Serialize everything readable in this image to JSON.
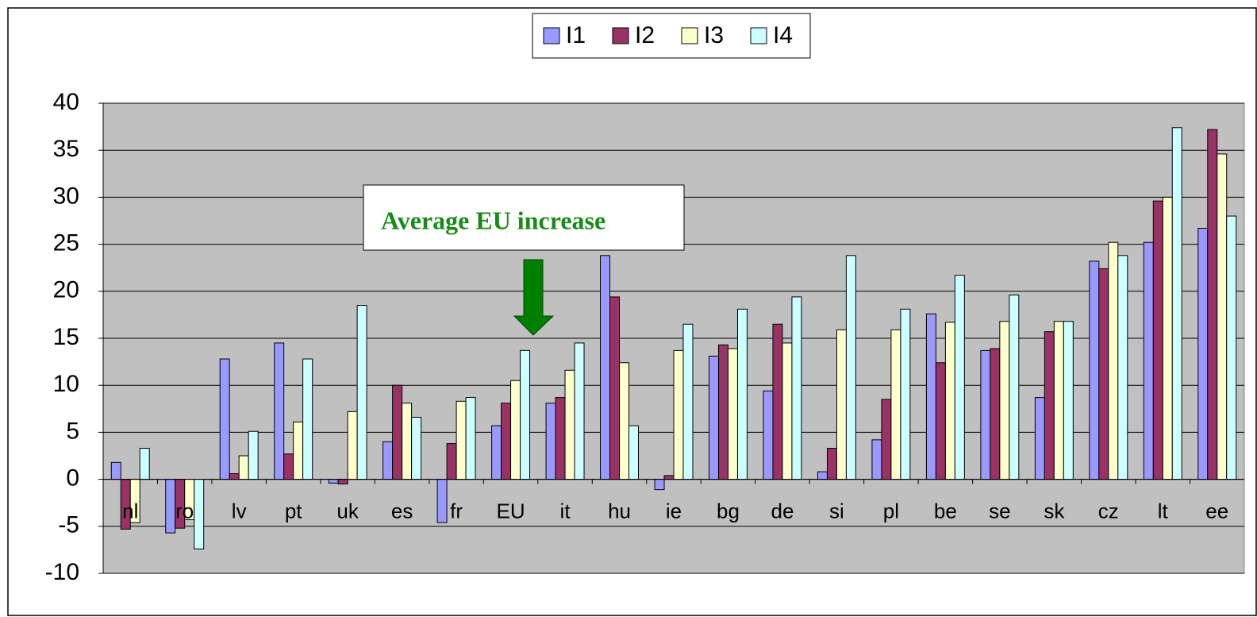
{
  "chart_data": {
    "type": "bar",
    "categories": [
      "nl",
      "ro",
      "lv",
      "pt",
      "uk",
      "es",
      "fr",
      "EU",
      "it",
      "hu",
      "ie",
      "bg",
      "de",
      "si",
      "pl",
      "be",
      "se",
      "sk",
      "cz",
      "lt",
      "ee"
    ],
    "series": [
      {
        "name": "I1",
        "color": "#9999ff",
        "values": [
          1.8,
          -5.7,
          12.8,
          14.5,
          -0.4,
          4.0,
          -4.6,
          5.7,
          8.1,
          23.8,
          -1.1,
          13.1,
          9.4,
          0.8,
          4.2,
          17.6,
          13.7,
          8.7,
          23.2,
          25.2,
          26.7
        ]
      },
      {
        "name": "I2",
        "color": "#993366",
        "values": [
          -5.3,
          -5.2,
          0.6,
          2.7,
          -0.5,
          10.0,
          3.8,
          8.1,
          8.7,
          19.4,
          0.4,
          14.3,
          16.5,
          3.3,
          8.5,
          12.4,
          13.9,
          15.7,
          22.4,
          29.6,
          37.2
        ]
      },
      {
        "name": "I3",
        "color": "#ffffcc",
        "values": [
          -4.6,
          -4.3,
          2.5,
          6.1,
          7.2,
          8.1,
          8.3,
          10.5,
          11.6,
          12.4,
          13.7,
          13.9,
          14.5,
          15.9,
          15.9,
          16.7,
          16.8,
          16.8,
          25.2,
          30.0,
          34.6
        ]
      },
      {
        "name": "I4",
        "color": "#ccffff",
        "values": [
          3.3,
          -7.4,
          5.1,
          12.8,
          18.5,
          6.6,
          8.7,
          13.7,
          14.5,
          5.7,
          16.5,
          18.1,
          19.4,
          23.8,
          18.1,
          21.7,
          19.6,
          16.8,
          23.8,
          37.4,
          28.0
        ]
      }
    ],
    "ylim": [
      -10,
      40
    ],
    "yticks": [
      -10,
      -5,
      0,
      5,
      10,
      15,
      20,
      25,
      30,
      35,
      40
    ],
    "grid": true,
    "annotation": "Average EU increase"
  }
}
